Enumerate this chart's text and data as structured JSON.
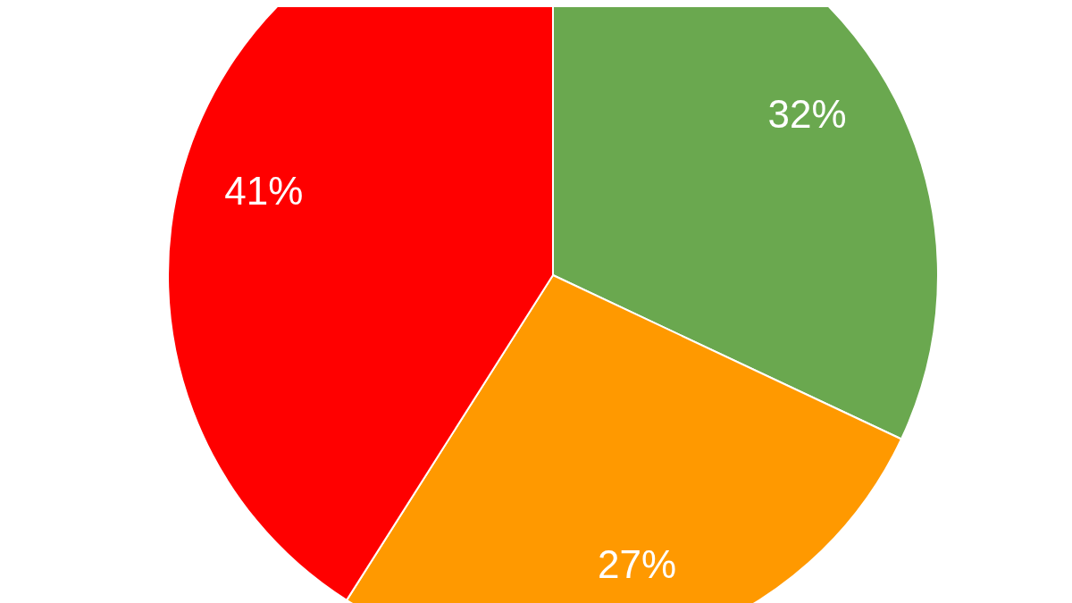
{
  "chart_data": {
    "type": "pie",
    "categories": [
      null,
      null,
      null
    ],
    "values": [
      32,
      27,
      41
    ],
    "colors": [
      "#6aa84f",
      "#ff9900",
      "#ff0000"
    ],
    "value_labels": [
      "32%",
      "27%",
      "41%"
    ]
  }
}
